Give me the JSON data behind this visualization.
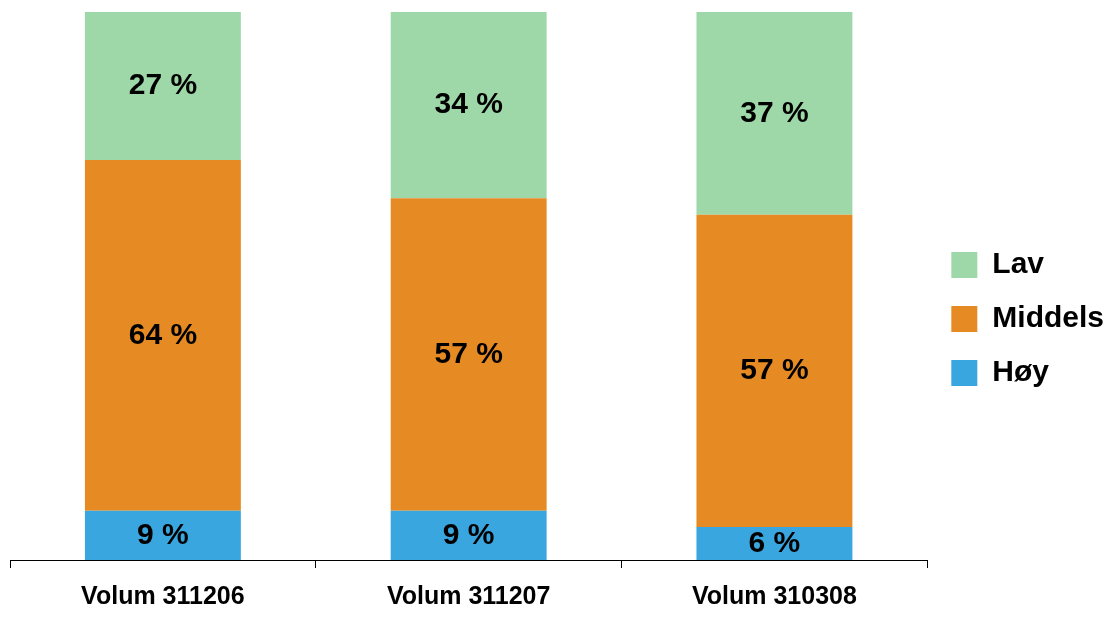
{
  "chart_data": {
    "type": "bar",
    "stacked": true,
    "categories": [
      "Volum 311206",
      "Volum 311207",
      "Volum 310308"
    ],
    "series": [
      {
        "name": "Høy",
        "color": "#3aa6e0",
        "values": [
          9,
          9,
          6
        ],
        "value_labels": [
          "9 %",
          "9 %",
          "6 %"
        ]
      },
      {
        "name": "Middels",
        "color": "#e68a24",
        "values": [
          64,
          57,
          57
        ],
        "value_labels": [
          "64 %",
          "57 %",
          "57 %"
        ]
      },
      {
        "name": "Lav",
        "color": "#9ed8a8",
        "values": [
          27,
          34,
          37
        ],
        "value_labels": [
          "27 %",
          "34 %",
          "37 %"
        ]
      }
    ],
    "legend": "right",
    "grid": false
  }
}
